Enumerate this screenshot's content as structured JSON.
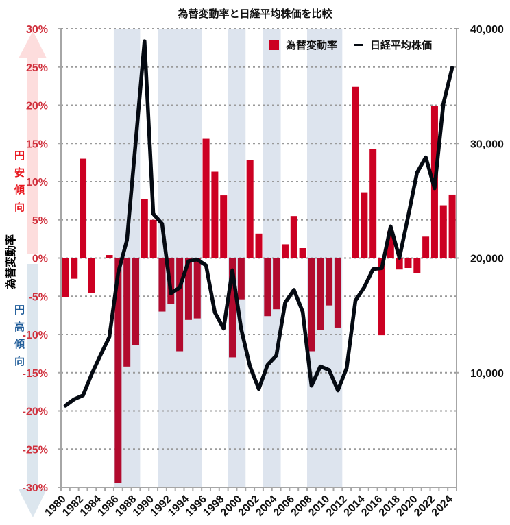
{
  "colors": {
    "bar": "#CC0022",
    "bar_in_band": "#B20A2E",
    "line": "#050A12",
    "band": "#DDE4EE",
    "grid": "#9A9A9A",
    "axis": "#A6A6A6",
    "left_tick_label": "#D0313D",
    "right_tick_label": "#111111",
    "yen_weak": "#E8141C",
    "yen_strong": "#1F5C99",
    "arrow_up": "#FDDDDD",
    "arrow_down": "#DCE6EE"
  },
  "chart_data": {
    "type": "bar",
    "title": "為替変動率と日経平均株価を比較",
    "xlabel": "",
    "ylabel": "為替変動率",
    "y2label": "",
    "ylim": [
      -30,
      30
    ],
    "y2lim": [
      0,
      40000
    ],
    "grid": true,
    "legend_position": "top-right",
    "categories": [
      "1980",
      "1981",
      "1982",
      "1983",
      "1984",
      "1985",
      "1986",
      "1987",
      "1988",
      "1989",
      "1990",
      "1991",
      "1992",
      "1993",
      "1994",
      "1995",
      "1996",
      "1997",
      "1998",
      "1999",
      "2000",
      "2001",
      "2002",
      "2003",
      "2004",
      "2005",
      "2006",
      "2007",
      "2008",
      "2009",
      "2010",
      "2011",
      "2012",
      "2013",
      "2014",
      "2015",
      "2016",
      "2017",
      "2018",
      "2019",
      "2020",
      "2021",
      "2022",
      "2023",
      "2024"
    ],
    "series": [
      {
        "name": "為替変動率",
        "chart_type": "bar",
        "axis": "left",
        "unit": "%",
        "values": [
          -5.1,
          -2.7,
          13.0,
          -4.6,
          0,
          0.4,
          -29.4,
          -14.2,
          -11.4,
          7.7,
          5.0,
          -7.0,
          -6.0,
          -12.2,
          -8.1,
          -7.9,
          15.6,
          11.3,
          8.2,
          -13.0,
          -5.4,
          12.8,
          3.2,
          -7.6,
          -6.7,
          1.8,
          5.5,
          1.3,
          -12.2,
          -9.4,
          -6.2,
          -9.1,
          0,
          22.4,
          8.6,
          14.3,
          -10.1,
          3.5,
          -1.5,
          -1.3,
          -2.0,
          2.8,
          19.9,
          6.9,
          8.3
        ]
      },
      {
        "name": "日経平均株価",
        "chart_type": "line",
        "axis": "right",
        "values": [
          7116,
          7682,
          8017,
          9894,
          11543,
          13113,
          18701,
          21564,
          30159,
          38916,
          23849,
          22984,
          16925,
          17417,
          19723,
          19868,
          19361,
          15259,
          13842,
          18934,
          13786,
          10543,
          8579,
          10677,
          11489,
          16111,
          17226,
          15308,
          8860,
          10546,
          10229,
          8455,
          10395,
          16291,
          17451,
          19034,
          19114,
          22765,
          20015,
          23657,
          27444,
          28792,
          26095,
          33464,
          36600
        ]
      }
    ],
    "yticks": [
      "30%",
      "25%",
      "20%",
      "15%",
      "10%",
      "5%",
      "0%",
      "-5%",
      "-10%",
      "-15%",
      "-20%",
      "-25%",
      "-30%"
    ],
    "ytick_values": [
      30,
      25,
      20,
      15,
      10,
      5,
      0,
      -5,
      -10,
      -15,
      -20,
      -25,
      -30
    ],
    "y2ticks": [
      "40,000",
      "30,000",
      "20,000",
      "10,000"
    ],
    "y2tick_values": [
      40000,
      30000,
      20000,
      10000
    ],
    "xtick_labels": [
      "1980",
      "1982",
      "1984",
      "1986",
      "1988",
      "1990",
      "1992",
      "1994",
      "1996",
      "1998",
      "2000",
      "2002",
      "2004",
      "2006",
      "2008",
      "2010",
      "2012",
      "2014",
      "2016",
      "2018",
      "2020",
      "2022",
      "2024"
    ],
    "shaded_periods": [
      [
        "1986",
        "1988"
      ],
      [
        "1991",
        "1995"
      ],
      [
        "1999",
        "2000"
      ],
      [
        "2003",
        "2004"
      ],
      [
        "2008",
        "2011"
      ]
    ],
    "legend": [
      {
        "label": "為替変動率",
        "symbol": "square"
      },
      {
        "label": "日経平均株価",
        "symbol": "line"
      }
    ],
    "annotations": {
      "yen_weak": "円安傾向",
      "yen_strong": "円高傾向"
    }
  }
}
